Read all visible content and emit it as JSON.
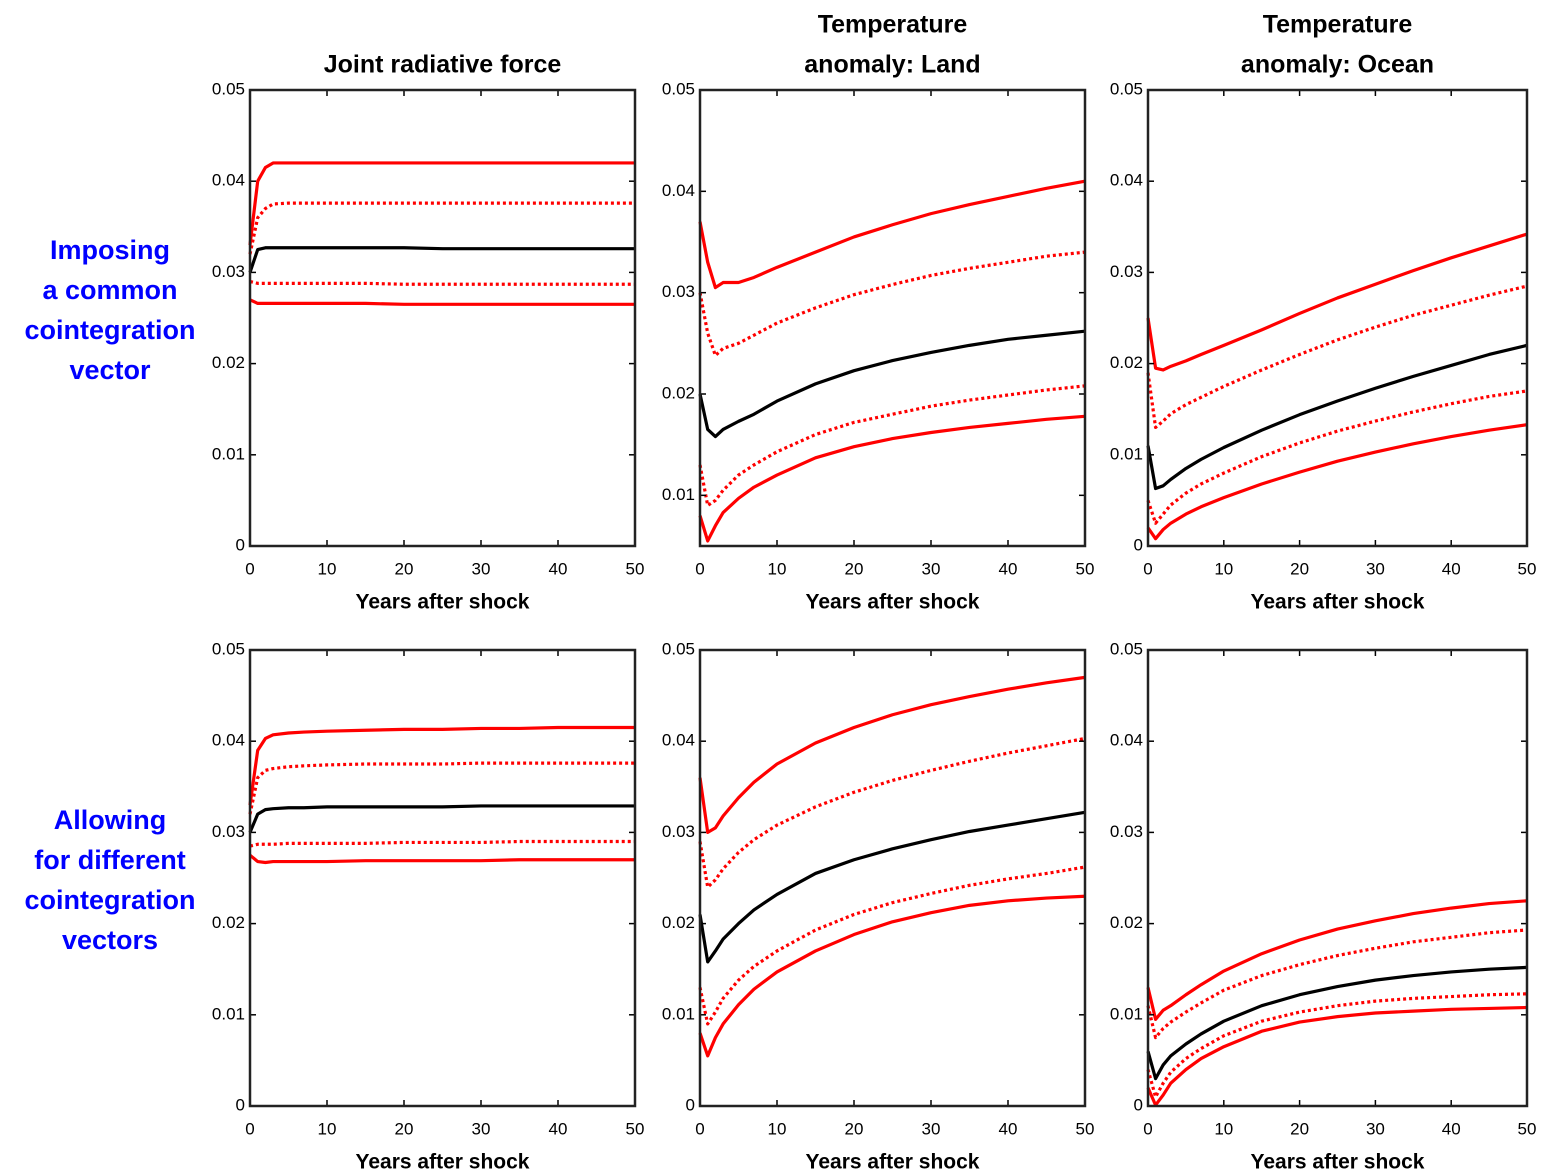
{
  "row_labels": [
    [
      "Imposing",
      "a common",
      "cointegration",
      "vector"
    ],
    [
      "Allowing",
      "for different",
      "cointegration",
      "vectors"
    ]
  ],
  "chart_data": [
    {
      "type": "line",
      "title": [
        "Joint radiative force"
      ],
      "xlabel": "Years after shock",
      "x": [
        0,
        1,
        2,
        3,
        5,
        7,
        10,
        15,
        20,
        25,
        30,
        35,
        40,
        45,
        50
      ],
      "xlim": [
        0,
        50
      ],
      "xticks": [
        0,
        10,
        20,
        30,
        40,
        50
      ],
      "ylim": [
        0,
        0.05
      ],
      "yticks": [
        0,
        0.01,
        0.02,
        0.03,
        0.04,
        0.05
      ],
      "series": [
        {
          "color": "#ff0000",
          "style": "solid",
          "values": [
            0.033,
            0.04,
            0.0415,
            0.042,
            0.042,
            0.042,
            0.042,
            0.042,
            0.042,
            0.042,
            0.042,
            0.042,
            0.042,
            0.042,
            0.042
          ]
        },
        {
          "color": "#ff0000",
          "style": "dotted",
          "values": [
            0.032,
            0.036,
            0.037,
            0.0375,
            0.0376,
            0.0376,
            0.0376,
            0.0376,
            0.0376,
            0.0376,
            0.0376,
            0.0376,
            0.0376,
            0.0376,
            0.0376
          ]
        },
        {
          "color": "#000000",
          "style": "solid",
          "values": [
            0.03,
            0.0325,
            0.0327,
            0.0327,
            0.0327,
            0.0327,
            0.0327,
            0.0327,
            0.0327,
            0.0326,
            0.0326,
            0.0326,
            0.0326,
            0.0326,
            0.0326
          ]
        },
        {
          "color": "#ff0000",
          "style": "dotted",
          "values": [
            0.029,
            0.0288,
            0.0288,
            0.0288,
            0.0288,
            0.0288,
            0.0288,
            0.0288,
            0.0287,
            0.0287,
            0.0287,
            0.0287,
            0.0287,
            0.0287,
            0.0287
          ]
        },
        {
          "color": "#ff0000",
          "style": "solid",
          "values": [
            0.027,
            0.0266,
            0.0266,
            0.0266,
            0.0266,
            0.0266,
            0.0266,
            0.0266,
            0.0265,
            0.0265,
            0.0265,
            0.0265,
            0.0265,
            0.0265,
            0.0265
          ]
        }
      ]
    },
    {
      "type": "line",
      "title": [
        "Temperature",
        "anomaly: Land"
      ],
      "xlabel": "Years after shock",
      "x": [
        0,
        1,
        2,
        3,
        5,
        7,
        10,
        15,
        20,
        25,
        30,
        35,
        40,
        45,
        50
      ],
      "xlim": [
        0,
        50
      ],
      "xticks": [
        0,
        10,
        20,
        30,
        40,
        50
      ],
      "ylim": [
        0.005,
        0.05
      ],
      "yticks": [
        0.01,
        0.02,
        0.03,
        0.04,
        0.05
      ],
      "series": [
        {
          "color": "#ff0000",
          "style": "solid",
          "values": [
            0.037,
            0.033,
            0.0305,
            0.031,
            0.031,
            0.0315,
            0.0325,
            0.034,
            0.0355,
            0.0367,
            0.0378,
            0.0387,
            0.0395,
            0.0403,
            0.041
          ]
        },
        {
          "color": "#ff0000",
          "style": "dotted",
          "values": [
            0.03,
            0.026,
            0.0238,
            0.0245,
            0.025,
            0.0258,
            0.027,
            0.0285,
            0.0298,
            0.0308,
            0.0317,
            0.0324,
            0.033,
            0.0336,
            0.034
          ]
        },
        {
          "color": "#000000",
          "style": "solid",
          "values": [
            0.02,
            0.0165,
            0.0158,
            0.0165,
            0.0173,
            0.018,
            0.0193,
            0.021,
            0.0223,
            0.0233,
            0.0241,
            0.0248,
            0.0254,
            0.0258,
            0.0262
          ]
        },
        {
          "color": "#ff0000",
          "style": "dotted",
          "values": [
            0.013,
            0.009,
            0.0095,
            0.0105,
            0.012,
            0.013,
            0.0143,
            0.016,
            0.0172,
            0.018,
            0.0188,
            0.0194,
            0.0199,
            0.0204,
            0.0208
          ]
        },
        {
          "color": "#ff0000",
          "style": "solid",
          "values": [
            0.008,
            0.0055,
            0.007,
            0.0083,
            0.0097,
            0.0108,
            0.012,
            0.0137,
            0.0148,
            0.0156,
            0.0162,
            0.0167,
            0.0171,
            0.0175,
            0.0178
          ]
        }
      ]
    },
    {
      "type": "line",
      "title": [
        "Temperature",
        "anomaly: Ocean"
      ],
      "xlabel": "Years after shock",
      "x": [
        0,
        1,
        2,
        3,
        5,
        7,
        10,
        15,
        20,
        25,
        30,
        35,
        40,
        45,
        50
      ],
      "xlim": [
        0,
        50
      ],
      "xticks": [
        0,
        10,
        20,
        30,
        40,
        50
      ],
      "ylim": [
        0,
        0.05
      ],
      "yticks": [
        0,
        0.01,
        0.02,
        0.03,
        0.04,
        0.05
      ],
      "series": [
        {
          "color": "#ff0000",
          "style": "solid",
          "values": [
            0.025,
            0.0195,
            0.0193,
            0.0197,
            0.0203,
            0.021,
            0.022,
            0.0237,
            0.0255,
            0.0272,
            0.0287,
            0.0302,
            0.0316,
            0.0329,
            0.0342
          ]
        },
        {
          "color": "#ff0000",
          "style": "dotted",
          "values": [
            0.019,
            0.013,
            0.0137,
            0.0145,
            0.0155,
            0.0163,
            0.0175,
            0.0193,
            0.021,
            0.0226,
            0.024,
            0.0253,
            0.0264,
            0.0275,
            0.0285
          ]
        },
        {
          "color": "#000000",
          "style": "solid",
          "values": [
            0.011,
            0.0063,
            0.0066,
            0.0073,
            0.0085,
            0.0095,
            0.0108,
            0.0127,
            0.0144,
            0.0159,
            0.0173,
            0.0186,
            0.0198,
            0.021,
            0.022
          ]
        },
        {
          "color": "#ff0000",
          "style": "dotted",
          "values": [
            0.005,
            0.0025,
            0.0035,
            0.0045,
            0.0058,
            0.0068,
            0.008,
            0.0098,
            0.0113,
            0.0126,
            0.0137,
            0.0147,
            0.0156,
            0.0164,
            0.017
          ]
        },
        {
          "color": "#ff0000",
          "style": "solid",
          "values": [
            0.002,
            0.0008,
            0.0018,
            0.0025,
            0.0035,
            0.0043,
            0.0053,
            0.0068,
            0.0081,
            0.0093,
            0.0103,
            0.0112,
            0.012,
            0.0127,
            0.0133
          ]
        }
      ]
    },
    {
      "type": "line",
      "xlabel": "Years after shock",
      "x": [
        0,
        1,
        2,
        3,
        5,
        7,
        10,
        15,
        20,
        25,
        30,
        35,
        40,
        45,
        50
      ],
      "xlim": [
        0,
        50
      ],
      "xticks": [
        0,
        10,
        20,
        30,
        40,
        50
      ],
      "ylim": [
        0,
        0.05
      ],
      "yticks": [
        0,
        0.01,
        0.02,
        0.03,
        0.04,
        0.05
      ],
      "series": [
        {
          "color": "#ff0000",
          "style": "solid",
          "values": [
            0.033,
            0.039,
            0.0403,
            0.0407,
            0.0409,
            0.041,
            0.0411,
            0.0412,
            0.0413,
            0.0413,
            0.0414,
            0.0414,
            0.0415,
            0.0415,
            0.0415
          ]
        },
        {
          "color": "#ff0000",
          "style": "dotted",
          "values": [
            0.032,
            0.036,
            0.0368,
            0.037,
            0.0372,
            0.0373,
            0.0374,
            0.0375,
            0.0375,
            0.0375,
            0.0376,
            0.0376,
            0.0376,
            0.0376,
            0.0376
          ]
        },
        {
          "color": "#000000",
          "style": "solid",
          "values": [
            0.03,
            0.032,
            0.0325,
            0.0326,
            0.0327,
            0.0327,
            0.0328,
            0.0328,
            0.0328,
            0.0328,
            0.0329,
            0.0329,
            0.0329,
            0.0329,
            0.0329
          ]
        },
        {
          "color": "#ff0000",
          "style": "dotted",
          "values": [
            0.0285,
            0.0287,
            0.0287,
            0.0287,
            0.0288,
            0.0288,
            0.0288,
            0.0288,
            0.0289,
            0.0289,
            0.0289,
            0.029,
            0.029,
            0.029,
            0.029
          ]
        },
        {
          "color": "#ff0000",
          "style": "solid",
          "values": [
            0.0275,
            0.0268,
            0.0267,
            0.0268,
            0.0268,
            0.0268,
            0.0268,
            0.0269,
            0.0269,
            0.0269,
            0.0269,
            0.027,
            0.027,
            0.027,
            0.027
          ]
        }
      ]
    },
    {
      "type": "line",
      "xlabel": "Years after shock",
      "x": [
        0,
        1,
        2,
        3,
        5,
        7,
        10,
        15,
        20,
        25,
        30,
        35,
        40,
        45,
        50
      ],
      "xlim": [
        0,
        50
      ],
      "xticks": [
        0,
        10,
        20,
        30,
        40,
        50
      ],
      "ylim": [
        0,
        0.05
      ],
      "yticks": [
        0,
        0.01,
        0.02,
        0.03,
        0.04,
        0.05
      ],
      "series": [
        {
          "color": "#ff0000",
          "style": "solid",
          "values": [
            0.036,
            0.03,
            0.0305,
            0.0318,
            0.0338,
            0.0355,
            0.0375,
            0.0398,
            0.0415,
            0.0429,
            0.044,
            0.0449,
            0.0457,
            0.0464,
            0.047
          ]
        },
        {
          "color": "#ff0000",
          "style": "dotted",
          "values": [
            0.029,
            0.024,
            0.0248,
            0.026,
            0.0278,
            0.0292,
            0.0308,
            0.0328,
            0.0344,
            0.0357,
            0.0368,
            0.0378,
            0.0387,
            0.0395,
            0.0403
          ]
        },
        {
          "color": "#000000",
          "style": "solid",
          "values": [
            0.021,
            0.0158,
            0.017,
            0.0183,
            0.02,
            0.0215,
            0.0232,
            0.0255,
            0.027,
            0.0282,
            0.0292,
            0.0301,
            0.0308,
            0.0315,
            0.0322
          ]
        },
        {
          "color": "#ff0000",
          "style": "dotted",
          "values": [
            0.013,
            0.009,
            0.0103,
            0.0118,
            0.0138,
            0.0153,
            0.017,
            0.0193,
            0.021,
            0.0223,
            0.0233,
            0.0242,
            0.0249,
            0.0255,
            0.0262
          ]
        },
        {
          "color": "#ff0000",
          "style": "solid",
          "values": [
            0.008,
            0.0055,
            0.0075,
            0.009,
            0.0111,
            0.0128,
            0.0147,
            0.017,
            0.0188,
            0.0202,
            0.0212,
            0.022,
            0.0225,
            0.0228,
            0.023
          ]
        }
      ]
    },
    {
      "type": "line",
      "xlabel": "Years after shock",
      "x": [
        0,
        1,
        2,
        3,
        5,
        7,
        10,
        15,
        20,
        25,
        30,
        35,
        40,
        45,
        50
      ],
      "xlim": [
        0,
        50
      ],
      "xticks": [
        0,
        10,
        20,
        30,
        40,
        50
      ],
      "ylim": [
        0,
        0.05
      ],
      "yticks": [
        0,
        0.01,
        0.02,
        0.03,
        0.04,
        0.05
      ],
      "series": [
        {
          "color": "#ff0000",
          "style": "solid",
          "values": [
            0.013,
            0.0095,
            0.0105,
            0.011,
            0.0122,
            0.0133,
            0.0148,
            0.0167,
            0.0182,
            0.0194,
            0.0203,
            0.0211,
            0.0217,
            0.0222,
            0.0225
          ]
        },
        {
          "color": "#ff0000",
          "style": "dotted",
          "values": [
            0.011,
            0.0075,
            0.0085,
            0.0092,
            0.0103,
            0.0113,
            0.0127,
            0.0143,
            0.0155,
            0.0165,
            0.0173,
            0.018,
            0.0185,
            0.019,
            0.0193
          ]
        },
        {
          "color": "#000000",
          "style": "solid",
          "values": [
            0.006,
            0.003,
            0.0045,
            0.0055,
            0.0068,
            0.0079,
            0.0093,
            0.011,
            0.0122,
            0.0131,
            0.0138,
            0.0143,
            0.0147,
            0.015,
            0.0152
          ]
        },
        {
          "color": "#ff0000",
          "style": "dotted",
          "values": [
            0.004,
            0.001,
            0.0025,
            0.0037,
            0.0052,
            0.0063,
            0.0077,
            0.0093,
            0.0103,
            0.011,
            0.0115,
            0.0118,
            0.012,
            0.0122,
            0.0123
          ]
        },
        {
          "color": "#ff0000",
          "style": "solid",
          "values": [
            0.002,
            0.0001,
            0.0012,
            0.0025,
            0.004,
            0.0052,
            0.0065,
            0.0082,
            0.0092,
            0.0098,
            0.0102,
            0.0104,
            0.0106,
            0.0107,
            0.0108
          ]
        }
      ]
    }
  ]
}
